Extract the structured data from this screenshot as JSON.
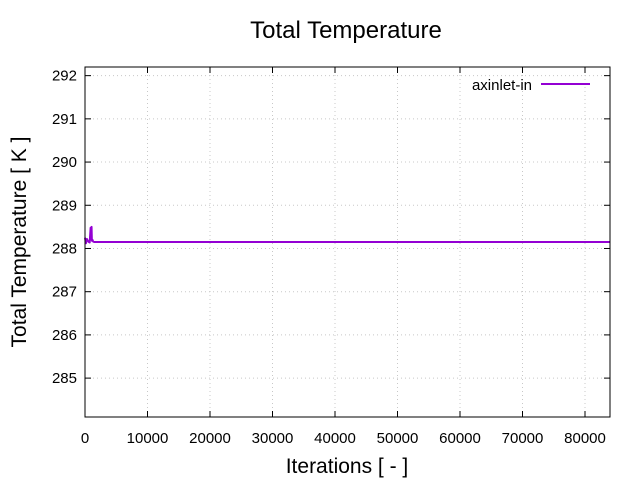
{
  "chart_data": {
    "type": "line",
    "title": "Total Temperature",
    "xlabel": "Iterations [ - ]",
    "ylabel": "Total Temperature [ K ]",
    "xlim": [
      0,
      84000
    ],
    "ylim": [
      284.1,
      292.2
    ],
    "xticks": [
      0,
      10000,
      20000,
      30000,
      40000,
      50000,
      60000,
      70000,
      80000
    ],
    "yticks": [
      285,
      286,
      287,
      288,
      289,
      290,
      291,
      292
    ],
    "grid": true,
    "legend_position": "top-right",
    "series": [
      {
        "name": "axinlet-in",
        "color": "#9400d3",
        "x": [
          0,
          150,
          300,
          450,
          600,
          750,
          900,
          1000,
          1050,
          1100,
          1200,
          1300,
          1500,
          2000,
          3000,
          5000,
          10000,
          20000,
          40000,
          60000,
          84000
        ],
        "y": [
          288.25,
          288.12,
          288.22,
          288.18,
          288.15,
          288.14,
          288.48,
          288.42,
          288.5,
          288.18,
          288.2,
          288.16,
          288.15,
          288.15,
          288.15,
          288.15,
          288.15,
          288.15,
          288.15,
          288.15,
          288.15
        ]
      }
    ]
  }
}
